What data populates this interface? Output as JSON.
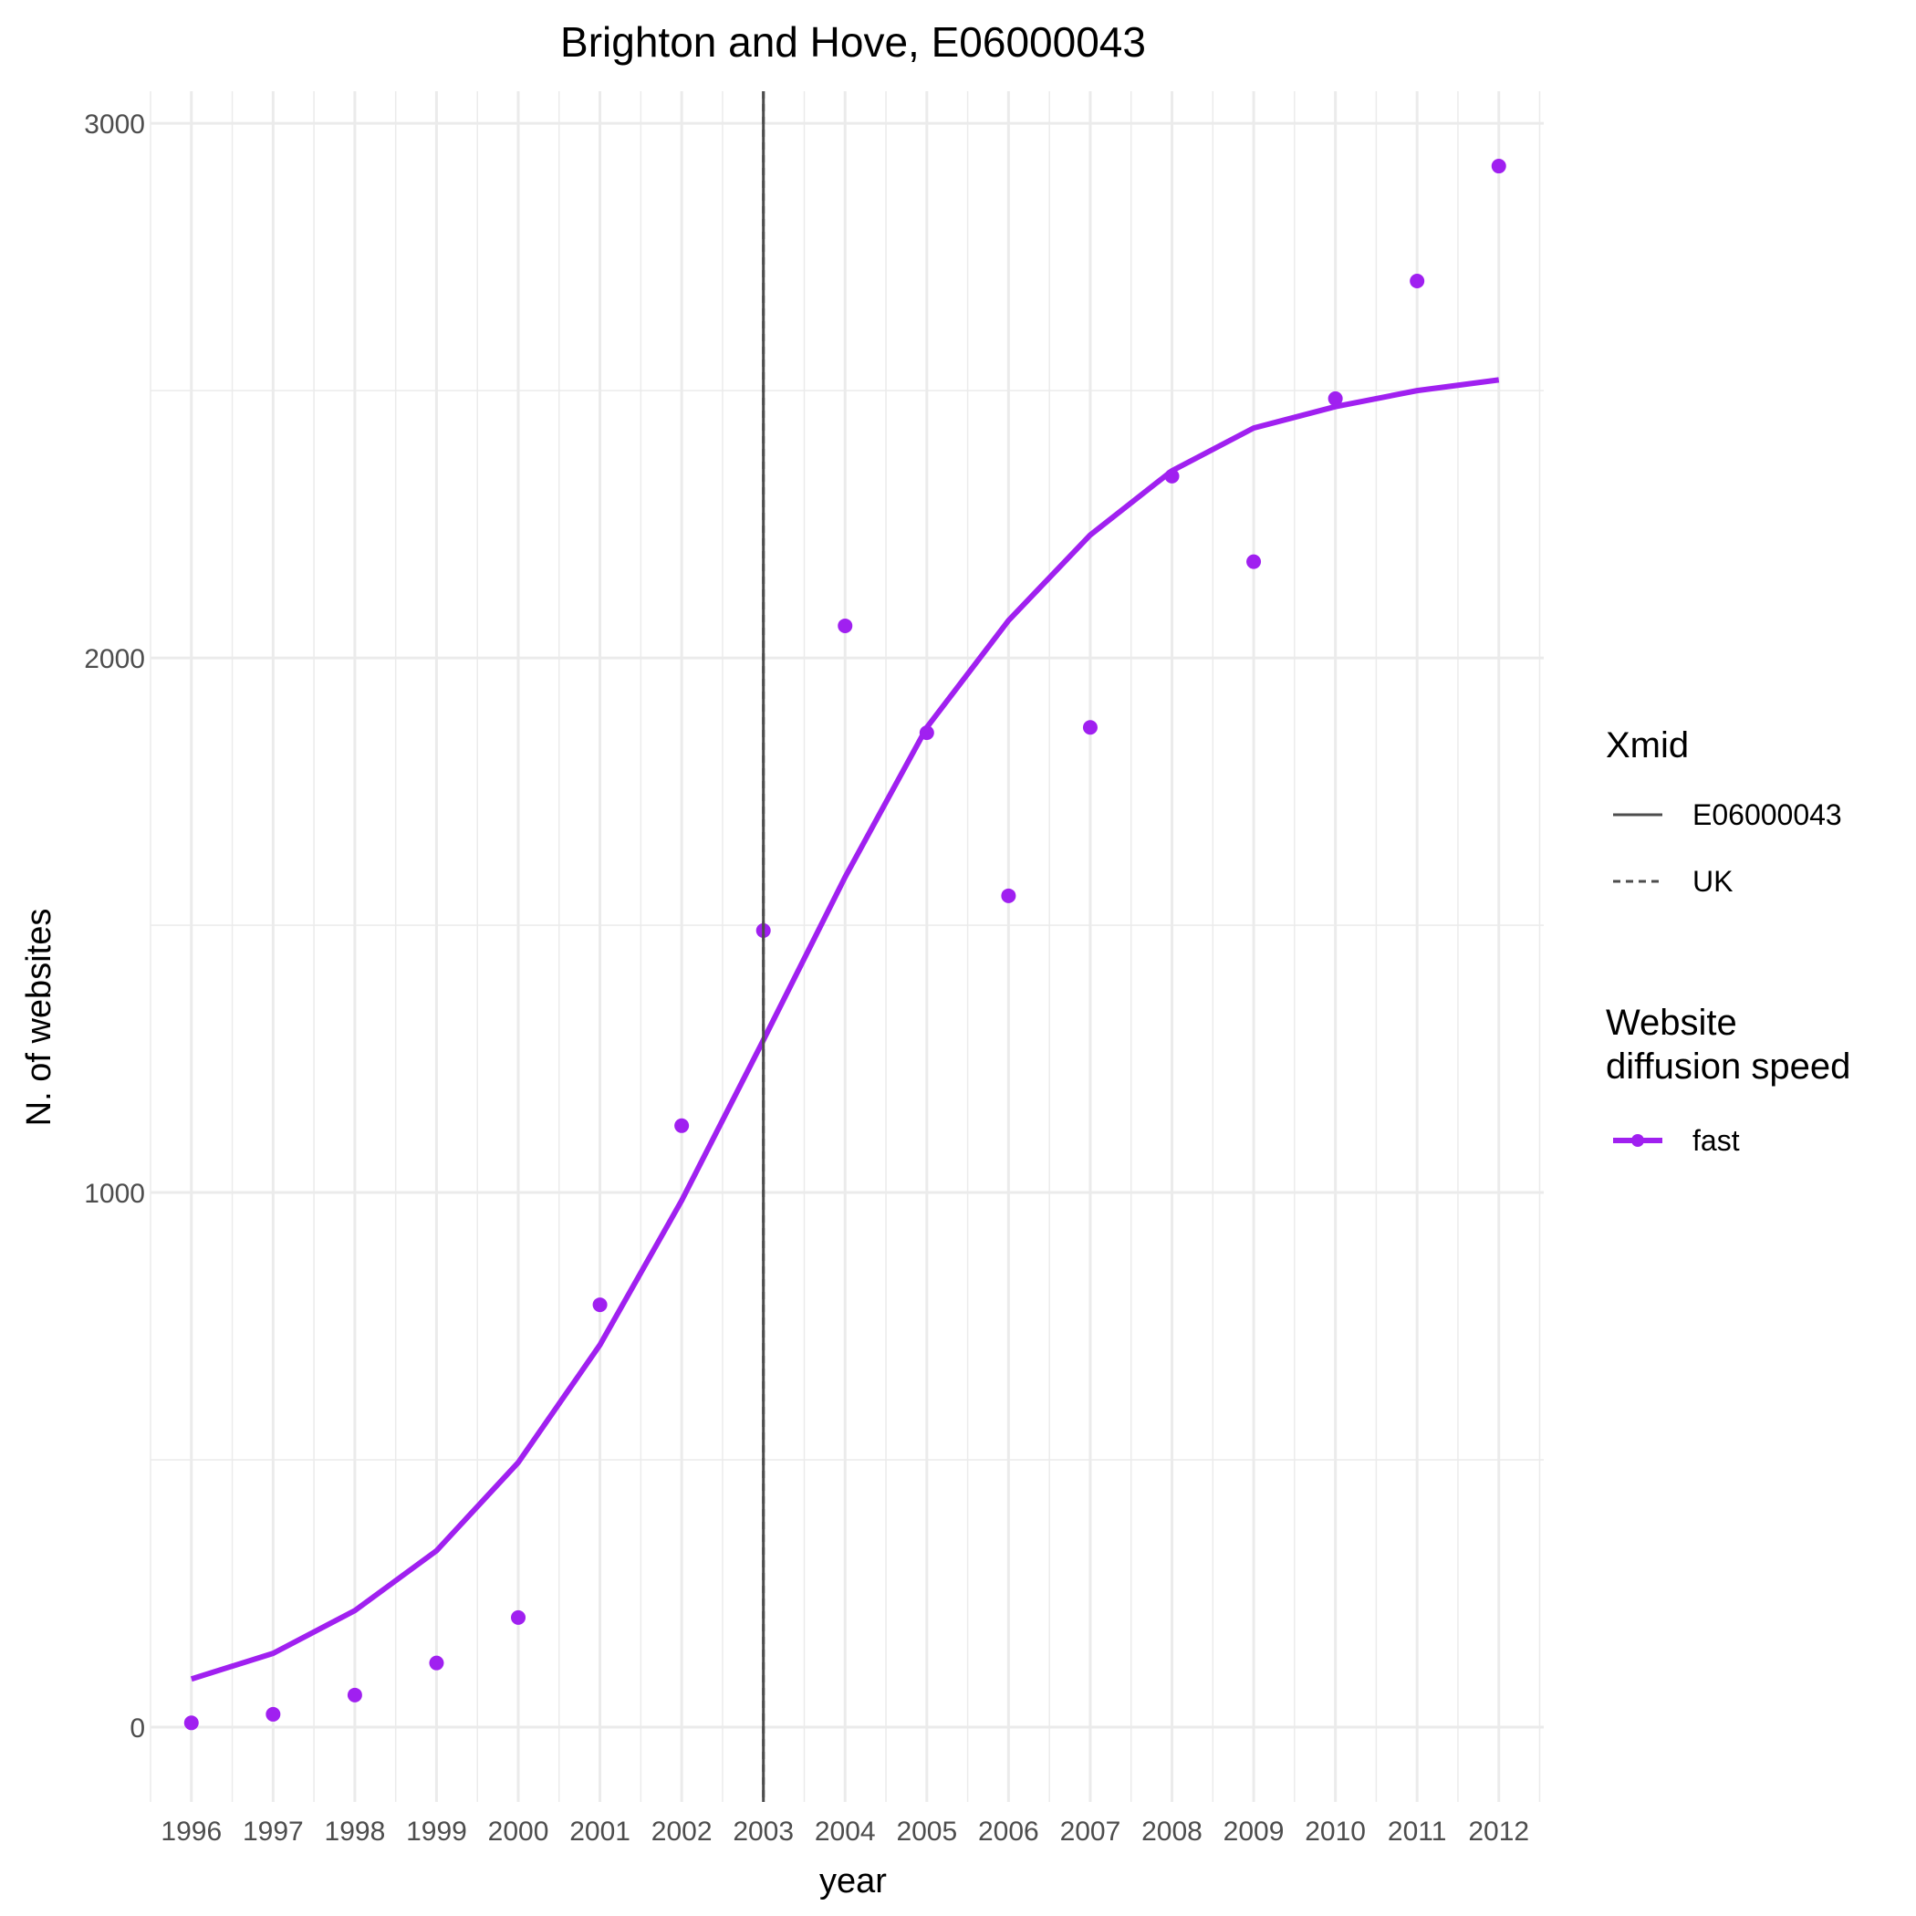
{
  "chart_data": {
    "type": "scatter",
    "title": "Brighton and Hove, E06000043",
    "xlabel": "year",
    "ylabel": "N. of websites",
    "xlim": [
      1995.5,
      2012.55
    ],
    "ylim": [
      -140,
      3060
    ],
    "x_ticks": [
      "1996",
      "1997",
      "1998",
      "1999",
      "2000",
      "2001",
      "2002",
      "2003",
      "2004",
      "2005",
      "2006",
      "2007",
      "2008",
      "2009",
      "2010",
      "2011",
      "2012"
    ],
    "y_ticks": [
      0,
      1000,
      2000,
      3000
    ],
    "y_tick_labels": [
      "0",
      "1000",
      "2000",
      "3000"
    ],
    "grid": true,
    "legend_position": "right",
    "series": [
      {
        "name": "fast",
        "color": "#a020f0",
        "points_x": [
          1996,
          1997,
          1998,
          1999,
          2000,
          2001,
          2002,
          2003,
          2004,
          2005,
          2006,
          2007,
          2008,
          2009,
          2010,
          2011,
          2012
        ],
        "points_y": [
          8,
          24,
          60,
          120,
          205,
          790,
          1125,
          1490,
          2060,
          1860,
          1555,
          1870,
          2340,
          2180,
          2485,
          2705,
          2920
        ],
        "fit_x": [
          1996,
          1997,
          1998,
          1999,
          2000,
          2001,
          2002,
          2003,
          2004,
          2005,
          2006,
          2007,
          2008,
          2009,
          2010,
          2011,
          2012
        ],
        "fit_y": [
          90,
          138,
          218,
          330,
          495,
          715,
          985,
          1285,
          1590,
          1870,
          2070,
          2230,
          2350,
          2430,
          2470,
          2500,
          2520
        ]
      }
    ],
    "vlines": [
      {
        "name": "E06000043",
        "x": 2003,
        "style": "solid",
        "color": "#4d4d4d"
      },
      {
        "name": "UK",
        "x": 2003,
        "style": "dashed",
        "color": "#4d4d4d"
      }
    ],
    "legend": {
      "xmid": {
        "title": "Xmid",
        "items": [
          "E06000043",
          "UK"
        ]
      },
      "speed": {
        "title_line1": "Website",
        "title_line2": "diffusion speed",
        "items": [
          "fast"
        ]
      }
    }
  }
}
